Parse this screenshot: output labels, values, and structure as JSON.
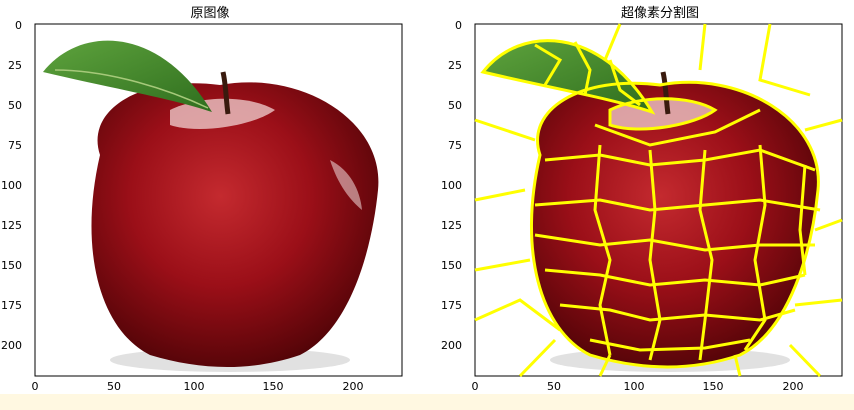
{
  "figure": {
    "panels": [
      {
        "id": "original",
        "title": "原图像",
        "x_ticks": [
          "0",
          "50",
          "100",
          "150",
          "200"
        ],
        "y_ticks": [
          "0",
          "25",
          "50",
          "75",
          "100",
          "125",
          "150",
          "175",
          "200"
        ],
        "image_content": "red apple with stem and green leaf on white background"
      },
      {
        "id": "superpixel",
        "title": "超像素分割图",
        "x_ticks": [
          "0",
          "50",
          "100",
          "150",
          "200"
        ],
        "y_ticks": [
          "0",
          "25",
          "50",
          "75",
          "100",
          "125",
          "150",
          "175",
          "200"
        ],
        "boundary_color": "#ffff00"
      }
    ],
    "colors": {
      "apple_red": "#8e0d16",
      "apple_dark": "#4a0407",
      "leaf_green": "#3f8a2a",
      "highlight": "#e8c9c9",
      "boundary": "#ffff00",
      "bottom_band": "#fff8e1"
    }
  }
}
